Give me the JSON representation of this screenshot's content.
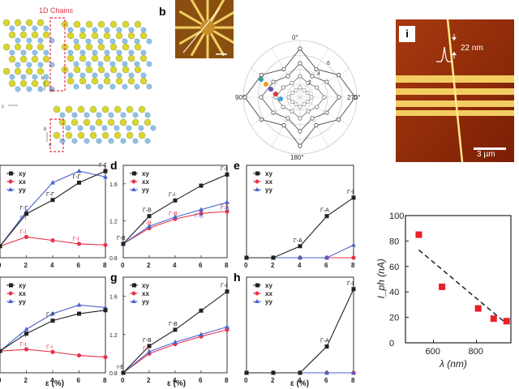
{
  "panel_labels": {
    "b": "b",
    "d": "d",
    "e": "e",
    "g": "g",
    "h": "h",
    "i": "i"
  },
  "crystal": {
    "chains_label": "1D Chains",
    "axes_top": [
      "b",
      "c",
      "a"
    ],
    "axes_bottom": [
      "b",
      "a"
    ]
  },
  "polar": {
    "angles": [
      "0°",
      "90°",
      "180°",
      "270°"
    ],
    "ring_labels": [
      "6",
      "4",
      "2"
    ]
  },
  "afm": {
    "height_label": "22 nm",
    "scalebar_label": "3 µm"
  },
  "legend": {
    "xy": "xy",
    "xx": "xx",
    "yy": "yy"
  },
  "strain_axis": {
    "ticks": [
      "0",
      "2",
      "4",
      "6",
      "8"
    ],
    "label": "ε (%)"
  },
  "colors": {
    "xy": "#222222",
    "xx": "#e8334a",
    "yy": "#4a63c9",
    "iph": "#e8202a",
    "afm_bg": "#9a2c08",
    "stripe": "#f3cd62"
  },
  "chart_data": [
    {
      "type": "line",
      "panel": "a-top",
      "x": [
        0,
        2,
        4,
        6,
        8
      ],
      "ylim": [
        0.9,
        1.7
      ],
      "series": [
        {
          "name": "xy",
          "values": [
            1.0,
            1.28,
            1.4,
            1.55,
            1.65
          ],
          "labels": [
            "",
            "Γ-Γ",
            "Γ-Γ",
            "Γ-Γ",
            "Γ-Γ"
          ]
        },
        {
          "name": "xx",
          "values": [
            1.0,
            1.08,
            1.05,
            1.02,
            1.01
          ],
          "labels": [
            "",
            "Γ-I",
            "",
            "Γ-I",
            ""
          ]
        },
        {
          "name": "yy",
          "values": [
            1.0,
            1.3,
            1.55,
            1.65,
            1.6
          ],
          "labels": [
            "",
            "Γ-I",
            "",
            "",
            ""
          ]
        }
      ]
    },
    {
      "type": "line",
      "panel": "d",
      "x": [
        0,
        2,
        4,
        6,
        8
      ],
      "ylim": [
        0.8,
        1.8
      ],
      "yticks": [
        "0.8",
        "1.2",
        "1.6"
      ],
      "series": [
        {
          "name": "xy",
          "values": [
            0.95,
            1.25,
            1.42,
            1.58,
            1.7
          ],
          "labels": [
            "Γ-B",
            "Γ-B",
            "Γ-I",
            "",
            "Γ-I"
          ]
        },
        {
          "name": "xx",
          "values": [
            0.95,
            1.12,
            1.22,
            1.28,
            1.3
          ],
          "labels": [
            "",
            "Γ-B",
            "Γ-B",
            "",
            "Γ-I"
          ]
        },
        {
          "name": "yy",
          "values": [
            0.95,
            1.14,
            1.24,
            1.32,
            1.4
          ],
          "labels": [
            "",
            "",
            "",
            "Γ-B",
            "Γ-B"
          ]
        }
      ]
    },
    {
      "type": "line",
      "panel": "e",
      "x": [
        0,
        2,
        4,
        6,
        8
      ],
      "ylim": [
        0.0,
        0.8
      ],
      "series": [
        {
          "name": "xy",
          "values": [
            0,
            0,
            0.1,
            0.36,
            0.52
          ],
          "labels": [
            "",
            "",
            "Γ-A",
            "Γ-A",
            "Γ-I"
          ]
        },
        {
          "name": "xx",
          "values": [
            0,
            0,
            0,
            0,
            0
          ],
          "labels": []
        },
        {
          "name": "yy",
          "values": [
            0,
            0,
            0,
            0,
            0.11
          ],
          "labels": []
        }
      ]
    },
    {
      "type": "line",
      "panel": "a-bottom",
      "x": [
        0,
        2,
        4,
        6,
        8
      ],
      "ylim": [
        0.6,
        1.7
      ],
      "series": [
        {
          "name": "xy",
          "values": [
            0.85,
            1.05,
            1.2,
            1.28,
            1.32
          ],
          "labels": [
            "Γ-I",
            "",
            "Γ-Γ",
            "",
            ""
          ]
        },
        {
          "name": "xx",
          "values": [
            0.85,
            0.87,
            0.84,
            0.8,
            0.78
          ],
          "labels": [
            "",
            "Γ-I",
            "Γ-I",
            "",
            ""
          ]
        },
        {
          "name": "yy",
          "values": [
            0.85,
            1.1,
            1.28,
            1.38,
            1.35
          ],
          "labels": [
            "",
            "Γ-Γ",
            "",
            "",
            ""
          ]
        }
      ]
    },
    {
      "type": "line",
      "panel": "g",
      "x": [
        0,
        2,
        4,
        6,
        8
      ],
      "ylim": [
        0.8,
        1.8
      ],
      "yticks": [
        "0.8",
        "1.2",
        "1.6"
      ],
      "series": [
        {
          "name": "xy",
          "values": [
            0.8,
            1.08,
            1.25,
            1.45,
            1.65
          ],
          "labels": [
            "I-B",
            "Γ-B",
            "Γ-B",
            "",
            "Γ-I"
          ]
        },
        {
          "name": "xx",
          "values": [
            0.8,
            1.0,
            1.1,
            1.18,
            1.25
          ],
          "labels": [
            "",
            "Γ-I",
            "",
            "",
            ""
          ]
        },
        {
          "name": "yy",
          "values": [
            0.8,
            1.02,
            1.12,
            1.2,
            1.28
          ],
          "labels": [
            "",
            "",
            "",
            "",
            ""
          ]
        }
      ]
    },
    {
      "type": "line",
      "panel": "h",
      "x": [
        0,
        2,
        4,
        6,
        8
      ],
      "ylim": [
        0.0,
        0.8
      ],
      "series": [
        {
          "name": "xy",
          "values": [
            0,
            0,
            0,
            0.22,
            0.7
          ],
          "labels": [
            "",
            "",
            "",
            "Γ-A",
            "Γ-I"
          ]
        },
        {
          "name": "xx",
          "values": [
            0,
            0,
            0,
            0,
            0
          ],
          "labels": []
        },
        {
          "name": "yy",
          "values": [
            0,
            0,
            0,
            0,
            0
          ],
          "labels": []
        }
      ]
    },
    {
      "type": "scatter",
      "panel": "iph",
      "xlabel": "λ (nm)",
      "ylabel": "I_ph (nA)",
      "xlim": [
        470,
        960
      ],
      "ylim": [
        0,
        100
      ],
      "xticks": [
        600,
        800
      ],
      "yticks": [
        0,
        20,
        40,
        60,
        80,
        100
      ],
      "points": [
        [
          532,
          85
        ],
        [
          640,
          44
        ],
        [
          808,
          27
        ],
        [
          880,
          19
        ],
        [
          940,
          17
        ]
      ],
      "fit": [
        [
          532,
          73
        ],
        [
          940,
          15
        ]
      ]
    }
  ]
}
